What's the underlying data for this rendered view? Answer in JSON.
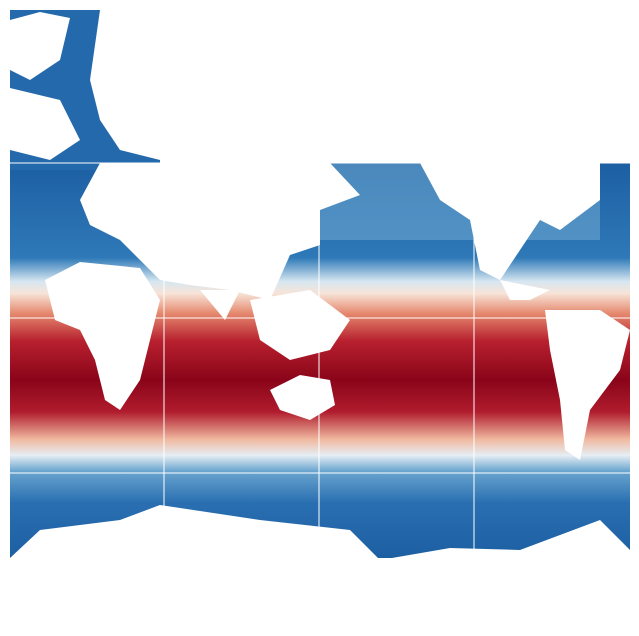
{
  "map": {
    "projection": "mercator",
    "variable_shown_by_color": "sea surface temperature",
    "colormap": {
      "name": "RdBu_r",
      "stops": [
        "#0b4f94",
        "#2166ac",
        "#4393c3",
        "#92c5de",
        "#d1e5f0",
        "#f7f7f7",
        "#fddbc7",
        "#f4a582",
        "#d6604d",
        "#b2182b",
        "#850014"
      ]
    },
    "land_color": "#ffffff",
    "ocean_no_data_color": "#ffffff",
    "gridlines": {
      "visible": true,
      "color": "#ffffff",
      "longitude_step_deg": 60,
      "latitude_lines_deg": [
        -40,
        0,
        40
      ]
    },
    "labels_printed": []
  }
}
